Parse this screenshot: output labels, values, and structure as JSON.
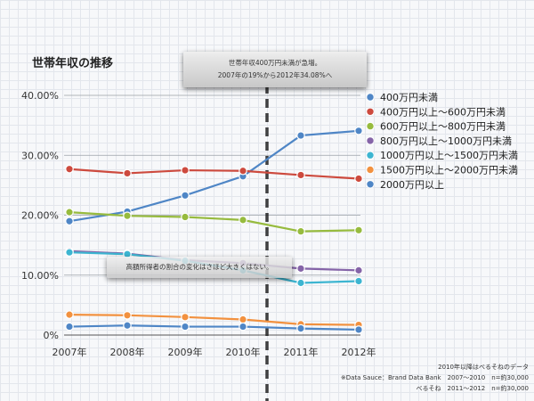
{
  "chart_data": {
    "type": "line",
    "title": "世帯年収の推移",
    "categories": [
      "2007年",
      "2008年",
      "2009年",
      "2010年",
      "2011年",
      "2012年"
    ],
    "ylim": [
      0,
      40
    ],
    "yticks": [
      {
        "value": 0,
        "label": "0%"
      },
      {
        "value": 10,
        "label": "10.00%"
      },
      {
        "value": 20,
        "label": "20.00%"
      },
      {
        "value": 30,
        "label": "30.00%"
      },
      {
        "value": 40,
        "label": "40.00%"
      }
    ],
    "series": [
      {
        "name": "400万円未満",
        "color": "#4f86c6",
        "values": [
          19.0,
          20.6,
          23.3,
          26.5,
          33.3,
          34.08
        ]
      },
      {
        "name": "400万円以上～600万円未満",
        "color": "#cd4a3e",
        "values": [
          27.7,
          27.0,
          27.5,
          27.4,
          26.7,
          26.1
        ]
      },
      {
        "name": "600万円以上～800万円未満",
        "color": "#97bb3e",
        "values": [
          20.5,
          19.9,
          19.7,
          19.2,
          17.3,
          17.5
        ]
      },
      {
        "name": "800万円以上～1000万円未満",
        "color": "#8564a8",
        "values": [
          14.0,
          13.6,
          12.5,
          12.0,
          11.1,
          10.8
        ]
      },
      {
        "name": "1000万円以上～1500万円未満",
        "color": "#3db5d1",
        "values": [
          13.8,
          13.5,
          12.4,
          10.8,
          8.7,
          9.0
        ]
      },
      {
        "name": "1500万円以上～2000万円未満",
        "color": "#f2913f",
        "values": [
          3.4,
          3.3,
          3.0,
          2.6,
          1.8,
          1.7
        ]
      },
      {
        "name": "2000万円以上",
        "color": "#4f86c6",
        "values": [
          1.4,
          1.6,
          1.4,
          1.4,
          1.1,
          0.9
        ]
      }
    ],
    "annotations": [
      {
        "lines": [
          "世帯年収400万円未満が急増。",
          "2007年の19%から2012年34.08%へ"
        ]
      },
      {
        "lines": [
          "高額所得者の割合の変化はさほど大きくはない。"
        ]
      }
    ],
    "footnotes": [
      "2010年以降はべるそねのデータ",
      "※Data Sauce：Brand Data Bank　2007～2010　n=約30,000",
      "　べるそね　2011～2012　n=約30,000"
    ]
  }
}
